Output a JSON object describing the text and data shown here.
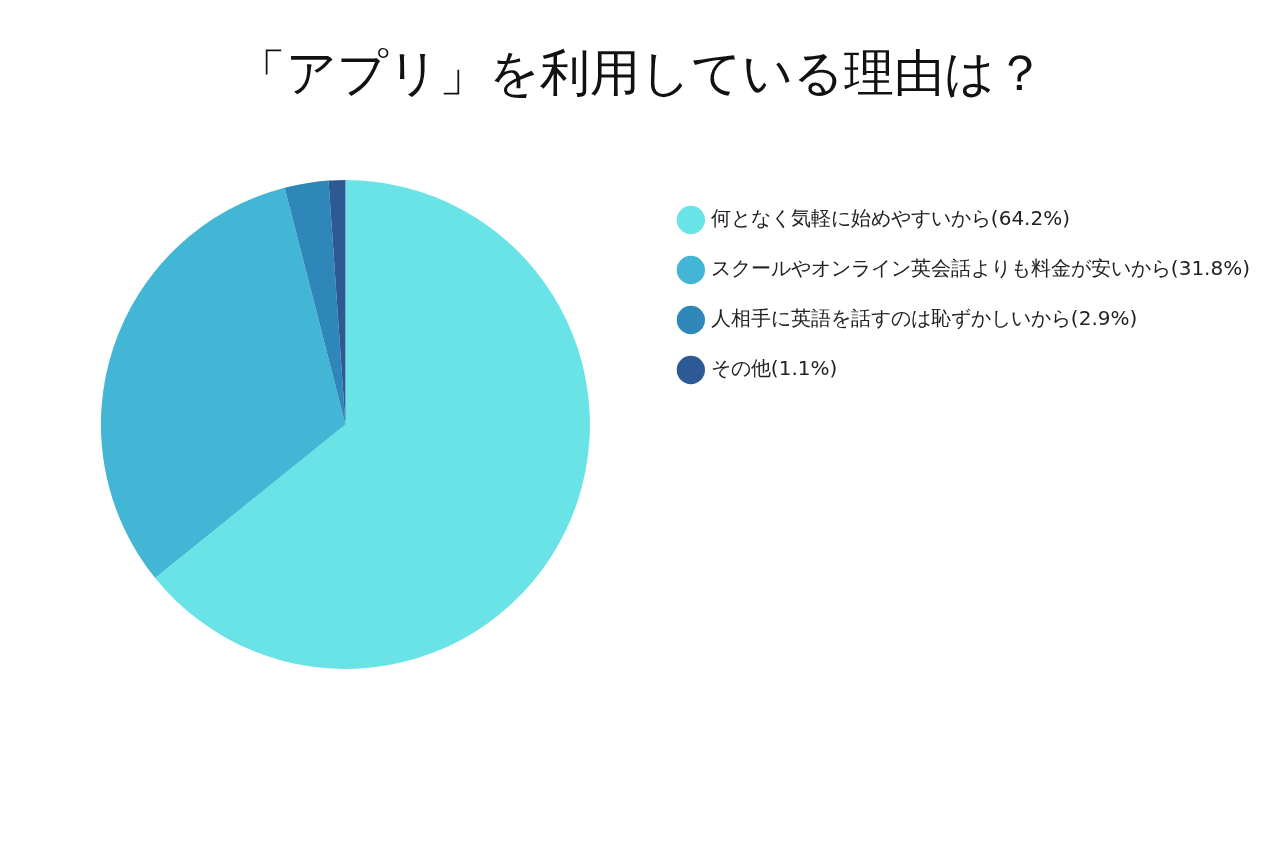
{
  "chart_data": {
    "type": "pie",
    "title": "「アプリ」を利用している理由は？",
    "categories": [
      "何となく気軽に始めやすいから(64.2%)",
      "スクールやオンライン英会話よりも料金が安いから(31.8%)",
      "人相手に英語を話すのは恥ずかしいから(2.9%)",
      "その他(1.1%)"
    ],
    "values": [
      64.2,
      31.8,
      2.9,
      1.1
    ],
    "colors": [
      "#6ae3e6",
      "#42b6d4",
      "#2e87b8",
      "#2d5a94"
    ],
    "legend": "right"
  }
}
